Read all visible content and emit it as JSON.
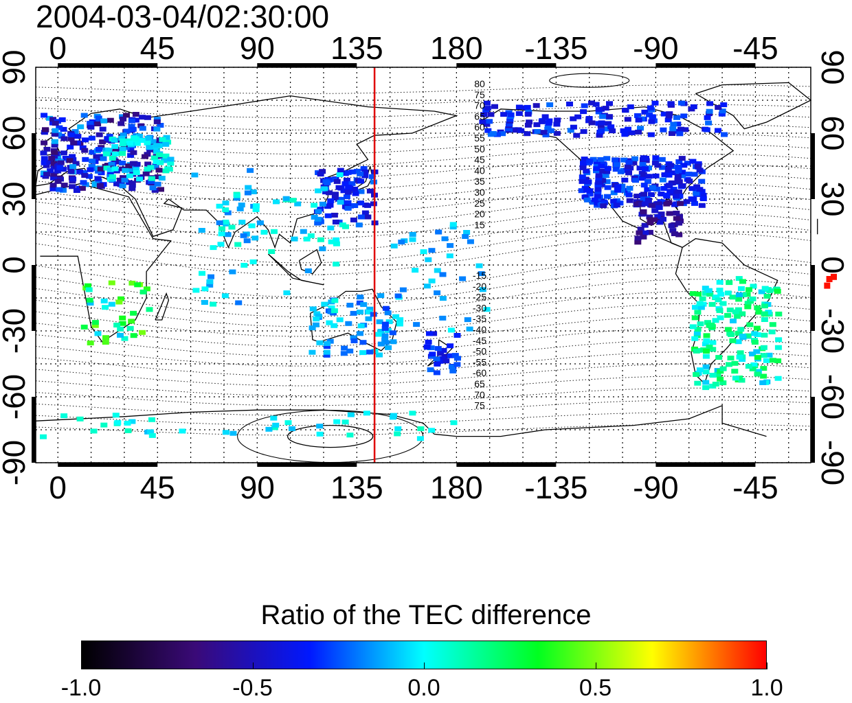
{
  "title": "2004-03-04/02:30:00",
  "map": {
    "lon_ticks": [
      "0",
      "45",
      "90",
      "135",
      "180",
      "-135",
      "-90",
      "-45"
    ],
    "lat_ticks": [
      "90",
      "60",
      "30",
      "0",
      "-30",
      "-60",
      "-90"
    ],
    "lon_range": [
      -10,
      340
    ],
    "lat_range": [
      -90,
      90
    ],
    "grid_lon_step": 15,
    "grid_lat_step": 15,
    "reference_meridian_lon": 143,
    "reference_meridian_color": "#e00000",
    "contour_labels_north": [
      "80",
      "75",
      "70",
      "65",
      "60",
      "55",
      "50",
      "45",
      "40",
      "35",
      "30",
      "25",
      "20",
      "15"
    ],
    "contour_labels_south": [
      "-15",
      "-20",
      "-25",
      "-30",
      "-35",
      "-40",
      "-45",
      "-50",
      "-55",
      "-60",
      "65",
      "70",
      "75"
    ]
  },
  "colorbar": {
    "title": "Ratio of the TEC difference",
    "ticks": [
      "-1.0",
      "-0.5",
      "0.0",
      "0.5",
      "1.0"
    ],
    "range": [
      -1.0,
      1.0
    ],
    "colors": [
      "#000000",
      "#3a0a78",
      "#0018ff",
      "#00ffff",
      "#00ff20",
      "#ffff00",
      "#ff0000"
    ]
  }
}
